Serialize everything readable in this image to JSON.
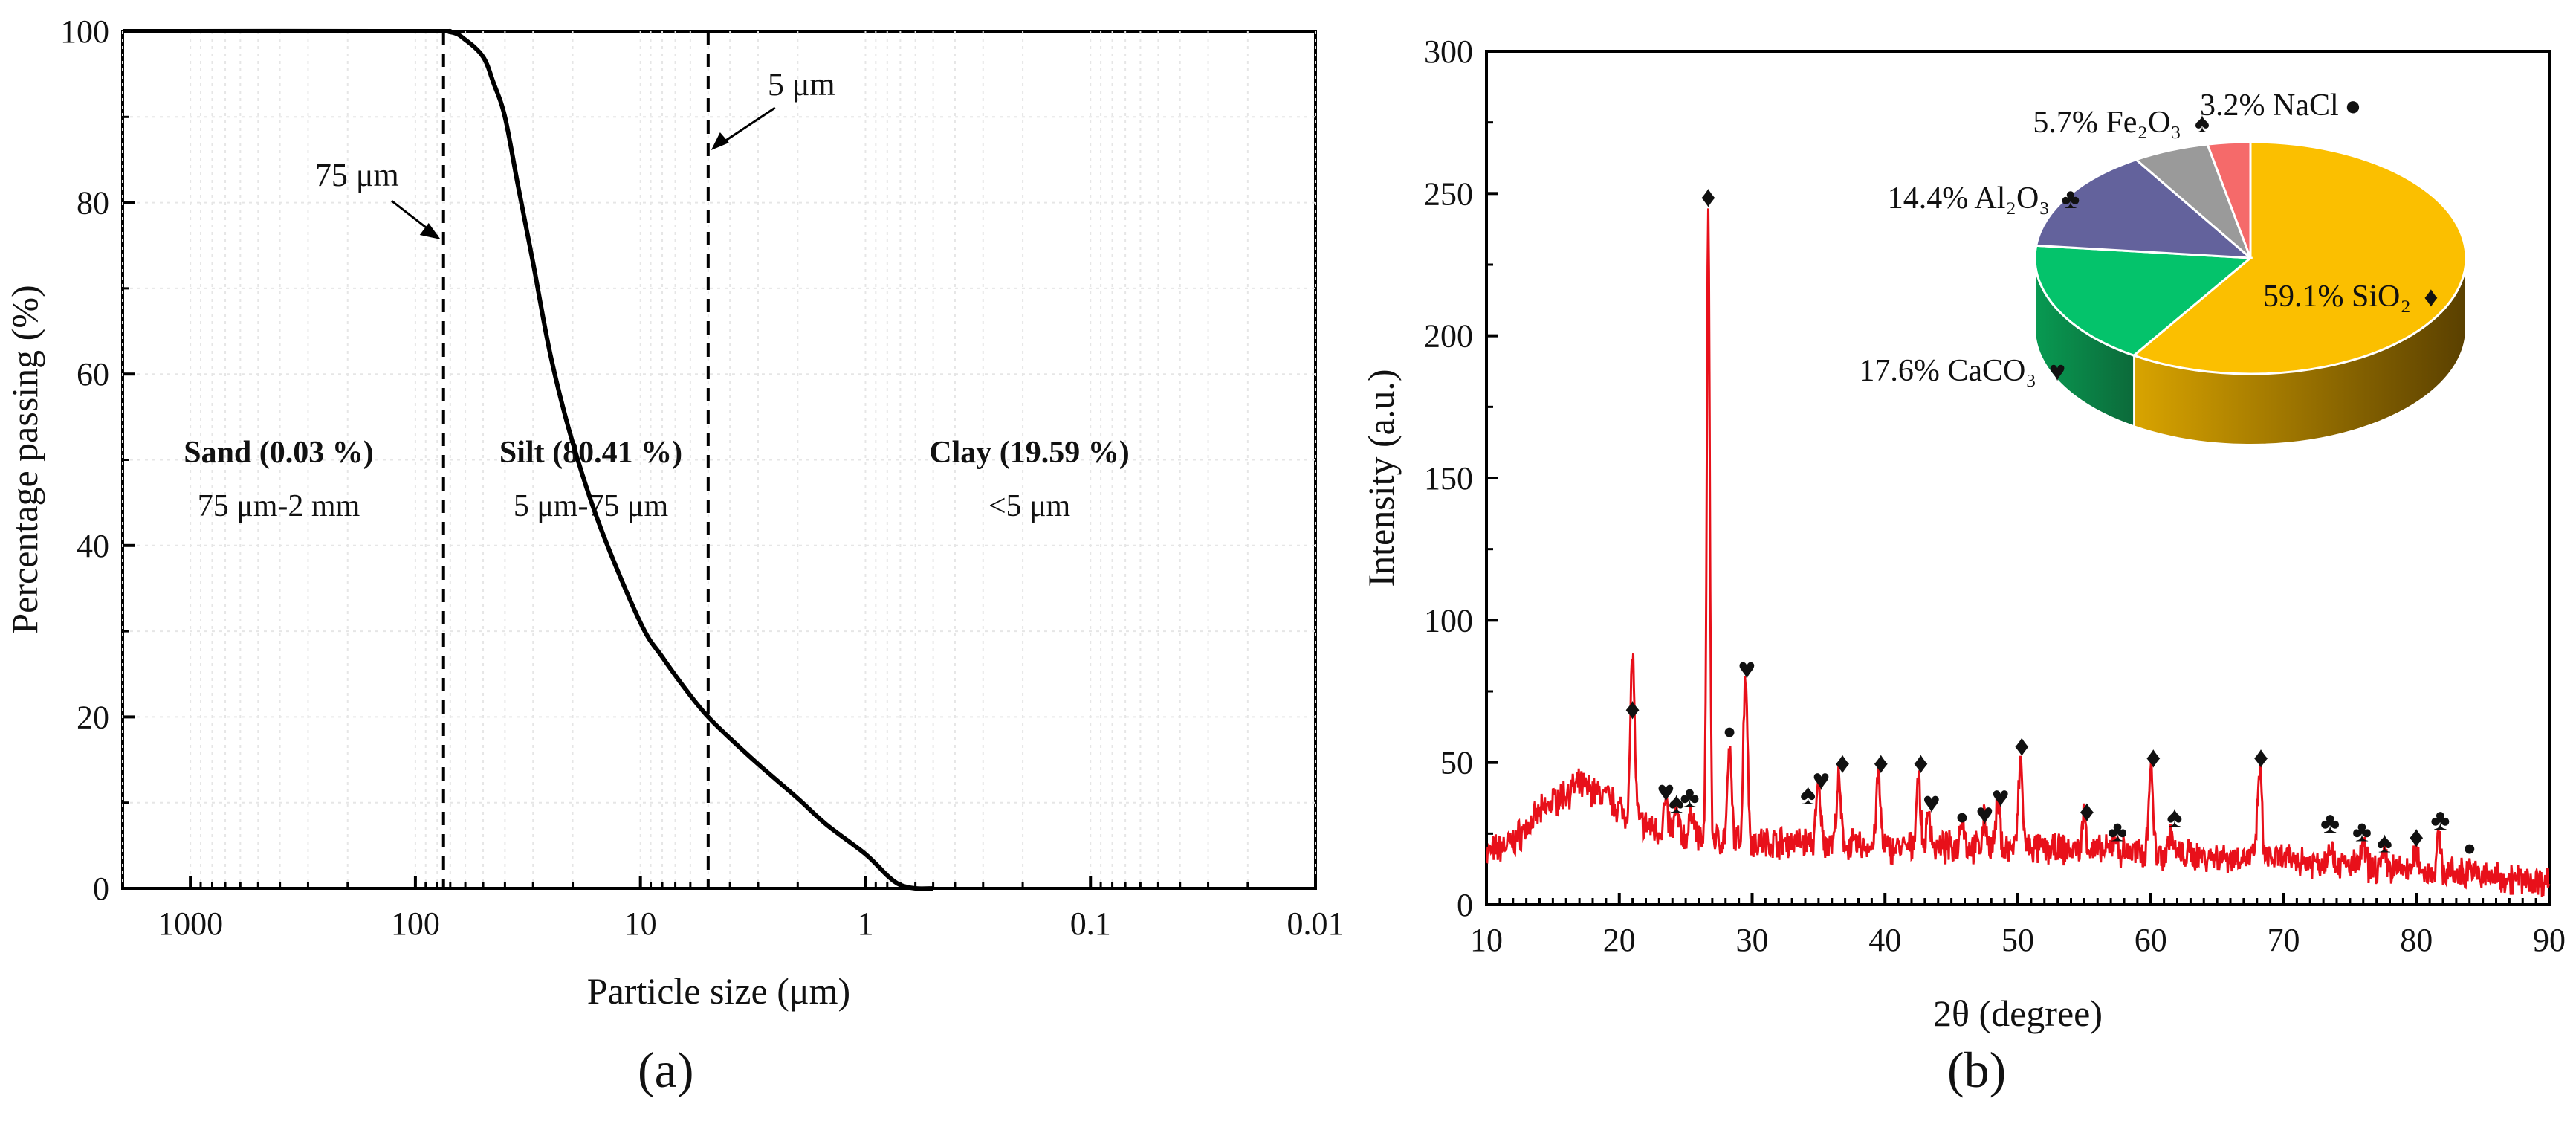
{
  "chart_data": [
    {
      "type": "line",
      "panel": "a",
      "xscale": "log-reversed",
      "xlim": [
        2000,
        0.01
      ],
      "ylim": [
        0,
        100
      ],
      "xlabel": "Particle size (μm)",
      "ylabel": "Percentage passing (%)",
      "xticks": [
        {
          "value": 1000,
          "label": "1000"
        },
        {
          "value": 100,
          "label": "100"
        },
        {
          "value": 10,
          "label": "10"
        },
        {
          "value": 1,
          "label": "1"
        },
        {
          "value": 0.1,
          "label": "0.1"
        },
        {
          "value": 0.01,
          "label": "0.01"
        }
      ],
      "yticks": [
        {
          "value": 0,
          "label": "0"
        },
        {
          "value": 20,
          "label": "20"
        },
        {
          "value": 40,
          "label": "40"
        },
        {
          "value": 60,
          "label": "60"
        },
        {
          "value": 80,
          "label": "80"
        },
        {
          "value": 100,
          "label": "100"
        }
      ],
      "series": [
        {
          "name": "Particle size distribution",
          "x": [
            2000,
            100,
            70,
            60,
            50,
            45,
            40,
            35,
            30,
            25,
            20,
            15,
            10,
            8,
            6,
            5,
            4,
            3,
            2,
            1.5,
            1,
            0.8,
            0.7,
            0.6,
            0.5
          ],
          "y": [
            100,
            100,
            99.9,
            99,
            97,
            94,
            90,
            82,
            73,
            62,
            52,
            42,
            31,
            27,
            22.5,
            20,
            17.5,
            14.5,
            10.5,
            7.5,
            4,
            1.5,
            0.4,
            0,
            0
          ]
        }
      ],
      "boundaries": [
        {
          "value": 75,
          "label": "75 μm"
        },
        {
          "value": 5,
          "label": "5 μm"
        }
      ],
      "regions": [
        {
          "name": "Sand (0.03 %)",
          "range": "75 μm-2 mm"
        },
        {
          "name": "Silt (80.41 %)",
          "range": "5 μm-75 μm"
        },
        {
          "name": "Clay (19.59 %)",
          "range": "<5 μm"
        }
      ]
    },
    {
      "type": "line",
      "panel": "b",
      "xlim": [
        10,
        90
      ],
      "ylim": [
        0,
        300
      ],
      "xlabel": "2θ (degree)",
      "ylabel": "Intensity (a.u.)",
      "xticks": [
        10,
        20,
        30,
        40,
        50,
        60,
        70,
        80,
        90
      ],
      "yticks": [
        0,
        50,
        100,
        150,
        200,
        250,
        300
      ],
      "series": [
        {
          "name": "XRD pattern",
          "color": "#e8101a",
          "baseline": [
            [
              10,
              18
            ],
            [
              12,
              22
            ],
            [
              14,
              32
            ],
            [
              15.5,
              38
            ],
            [
              17,
              42
            ],
            [
              19,
              38
            ],
            [
              21,
              30
            ],
            [
              23,
              26
            ],
            [
              25,
              24
            ],
            [
              27,
              23
            ],
            [
              30,
              22
            ],
            [
              35,
              22
            ],
            [
              40,
              20
            ],
            [
              45,
              20
            ],
            [
              50,
              20
            ],
            [
              55,
              19
            ],
            [
              60,
              18
            ],
            [
              65,
              17
            ],
            [
              70,
              16
            ],
            [
              75,
              14
            ],
            [
              80,
              12
            ],
            [
              85,
              10
            ],
            [
              90,
              8
            ]
          ],
          "peaks": [
            [
              21,
              58
            ],
            [
              23.5,
              10
            ],
            [
              24.3,
              8
            ],
            [
              25.5,
              10
            ],
            [
              26.7,
              220
            ],
            [
              28.3,
              30
            ],
            [
              29.5,
              60
            ],
            [
              35,
              20
            ],
            [
              36.5,
              22
            ],
            [
              39.5,
              25
            ],
            [
              42.5,
              25
            ],
            [
              43.3,
              12
            ],
            [
              45.8,
              12
            ],
            [
              47.5,
              10
            ],
            [
              48.5,
              15
            ],
            [
              50.2,
              30
            ],
            [
              55,
              12
            ],
            [
              57.3,
              6
            ],
            [
              60,
              32
            ],
            [
              61.5,
              8
            ],
            [
              68.2,
              32
            ],
            [
              73.5,
              8
            ],
            [
              76,
              7
            ],
            [
              77.6,
              5
            ],
            [
              80,
              7
            ],
            [
              81.7,
              12
            ],
            [
              84,
              4
            ]
          ]
        }
      ],
      "peak_markers": [
        {
          "x": 21,
          "y": 68,
          "symbol": "♦"
        },
        {
          "x": 23.5,
          "y": 39,
          "symbol": "♥"
        },
        {
          "x": 24.3,
          "y": 35,
          "symbol": "♠"
        },
        {
          "x": 25.3,
          "y": 37,
          "symbol": "♣"
        },
        {
          "x": 26.7,
          "y": 248,
          "symbol": "♦"
        },
        {
          "x": 28.3,
          "y": 61,
          "symbol": "●"
        },
        {
          "x": 29.6,
          "y": 82,
          "symbol": "♥"
        },
        {
          "x": 34.2,
          "y": 38,
          "symbol": "♠"
        },
        {
          "x": 35.2,
          "y": 43,
          "symbol": "♥"
        },
        {
          "x": 36.8,
          "y": 49,
          "symbol": "♦"
        },
        {
          "x": 39.7,
          "y": 49,
          "symbol": "♦"
        },
        {
          "x": 42.7,
          "y": 49,
          "symbol": "♦"
        },
        {
          "x": 43.5,
          "y": 35,
          "symbol": "♥"
        },
        {
          "x": 45.8,
          "y": 31,
          "symbol": "●"
        },
        {
          "x": 47.5,
          "y": 31,
          "symbol": "♥"
        },
        {
          "x": 48.7,
          "y": 37,
          "symbol": "♥"
        },
        {
          "x": 50.3,
          "y": 55,
          "symbol": "♦"
        },
        {
          "x": 55.2,
          "y": 32,
          "symbol": "♦"
        },
        {
          "x": 57.5,
          "y": 25,
          "symbol": "♣"
        },
        {
          "x": 60.2,
          "y": 51,
          "symbol": "♦"
        },
        {
          "x": 61.8,
          "y": 30,
          "symbol": "♠"
        },
        {
          "x": 68.3,
          "y": 51,
          "symbol": "♦"
        },
        {
          "x": 73.5,
          "y": 28,
          "symbol": "♣"
        },
        {
          "x": 75.9,
          "y": 25,
          "symbol": "♣"
        },
        {
          "x": 77.6,
          "y": 21,
          "symbol": "♠"
        },
        {
          "x": 80,
          "y": 23,
          "symbol": "♦"
        },
        {
          "x": 81.8,
          "y": 29,
          "symbol": "♣"
        },
        {
          "x": 84,
          "y": 20,
          "symbol": "●"
        }
      ]
    },
    {
      "type": "pie",
      "panel": "b-inset",
      "slices": [
        {
          "label": "59.1% SiO₂",
          "symbol": "♦",
          "value": 59.1,
          "color": "#fbbf00"
        },
        {
          "label": "17.6% CaCO₃",
          "symbol": "♥",
          "value": 17.6,
          "color": "#04c36b"
        },
        {
          "label": "14.4% Al₂O₃",
          "symbol": "♣",
          "value": 14.4,
          "color": "#63629c"
        },
        {
          "label": "5.7% Fe₂O₃",
          "symbol": "♠",
          "value": 5.7,
          "color": "#9a9a9a"
        },
        {
          "label": "3.2% NaCl",
          "symbol": "●",
          "value": 3.2,
          "color": "#f56a6a"
        }
      ]
    }
  ],
  "panel_labels": {
    "a": "(a)",
    "b": "(b)"
  }
}
